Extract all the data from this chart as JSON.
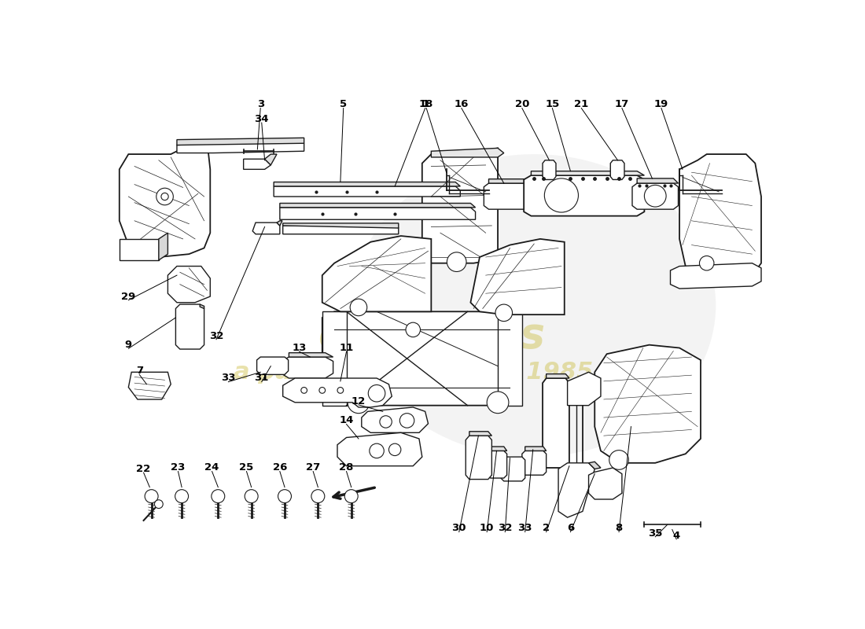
{
  "bg": "#ffffff",
  "lc": "#1a1a1a",
  "wm_color": "#c8b830",
  "wm_alpha": 0.4,
  "figsize": [
    11.0,
    8.0
  ],
  "dpi": 100
}
